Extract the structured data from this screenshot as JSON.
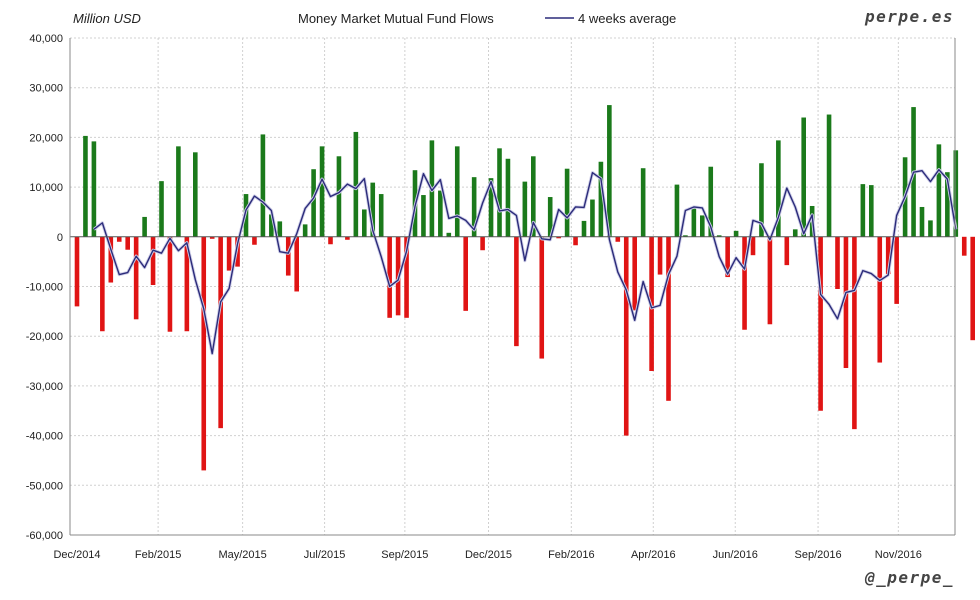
{
  "unit_label": "Million USD",
  "brand_top": "perpe.es",
  "brand_bottom": "@_perpe_",
  "colors": {
    "positive": "#1b7a1b",
    "negative": "#e01414",
    "average": "#2b2b7a",
    "grid": "#d0d0d0",
    "axis": "#888888"
  },
  "chart_data": {
    "type": "bar",
    "title": "Money Market Mutual Fund Flows",
    "ylim": [
      -60000,
      40000
    ],
    "yticks": [
      "40,000",
      "30,000",
      "20,000",
      "10,000",
      "0",
      "-10,000",
      "-20,000",
      "-30,000",
      "-40,000",
      "-50,000",
      "-60,000"
    ],
    "xticks": [
      {
        "label": "Dec/2014",
        "week": 0
      },
      {
        "label": "Feb/2015",
        "week": 9.6
      },
      {
        "label": "May/2015",
        "week": 19.6
      },
      {
        "label": "Jul/2015",
        "week": 29.3
      },
      {
        "label": "Sep/2015",
        "week": 38.8
      },
      {
        "label": "Dec/2015",
        "week": 48.7
      },
      {
        "label": "Feb/2016",
        "week": 58.5
      },
      {
        "label": "Apr/2016",
        "week": 68.2
      },
      {
        "label": "Jun/2016",
        "week": 77.9
      },
      {
        "label": "Sep/2016",
        "week": 87.7
      },
      {
        "label": "Nov/2016",
        "week": 97.2
      }
    ],
    "series": [
      {
        "name": "",
        "type": "bar",
        "values": [
          -14000,
          20300,
          19200,
          -19000,
          -9200,
          -1000,
          -2600,
          -16600,
          4000,
          -9700,
          11200,
          -19100,
          18200,
          -19000,
          17000,
          -47000,
          -400,
          -38500,
          -6800,
          -6000,
          8600,
          -1600,
          20600,
          4500,
          3100,
          -7800,
          -11000,
          2500,
          13600,
          18200,
          -1500,
          16200,
          -600,
          21100,
          5500,
          10900,
          8600,
          -16300,
          -15800,
          -16300,
          13400,
          8400,
          19400,
          9300,
          800,
          18200,
          -14900,
          12000,
          -2700,
          11800,
          17800,
          15700,
          -22000,
          11100,
          16200,
          -24500,
          8000,
          -300,
          13700,
          -1700,
          3200,
          7500,
          15100,
          26500,
          -1000,
          -40000,
          -14800,
          13800,
          -27000,
          -7600,
          -33000,
          10500,
          300,
          5700,
          4300,
          14100,
          300,
          -8100,
          1200,
          -18700,
          -3700,
          14800,
          -17600,
          19400,
          -5700,
          1500,
          24000,
          6200,
          -35000,
          24600,
          -10500,
          -26400,
          -38700,
          10600,
          10400,
          -25300,
          -7500,
          -13500,
          16000,
          26100,
          6000,
          3300,
          18600,
          13000,
          17400,
          -3800,
          -20800
        ]
      },
      {
        "name": "4 weeks average",
        "type": "line",
        "values": [
          null,
          null,
          1500,
          2800,
          -2500,
          -7600,
          -7200,
          -3900,
          -6200,
          -2700,
          -3300,
          -300,
          -2800,
          -1200,
          -8600,
          -14500,
          -23500,
          -13100,
          -10400,
          -1400,
          5400,
          8200,
          7000,
          5300,
          -3000,
          -3300,
          600,
          5700,
          7800,
          11600,
          8100,
          8900,
          10600,
          9700,
          11700,
          1300,
          -4000,
          -10000,
          -8700,
          -2900,
          6100,
          12700,
          9300,
          11500,
          3700,
          4200,
          3300,
          1400,
          6800,
          11100,
          5200,
          5500,
          4300,
          -4800,
          2900,
          -400,
          -600,
          5500,
          3800,
          6000,
          5900,
          12900,
          11700,
          -500,
          -7100,
          -10700,
          -16800,
          -9000,
          -14300,
          -13800,
          -7600,
          -3900,
          5300,
          6000,
          5800,
          2000,
          -4000,
          -7500,
          -4200,
          -6500,
          3300,
          2700,
          -600,
          3900,
          9800,
          6000,
          600,
          4400,
          -11600,
          -13600,
          -16500,
          -11200,
          -10800,
          -6800,
          -7400,
          -8800,
          -7700,
          4300,
          8100,
          13000,
          13300,
          11100,
          13500,
          11600,
          1500
        ]
      }
    ]
  }
}
